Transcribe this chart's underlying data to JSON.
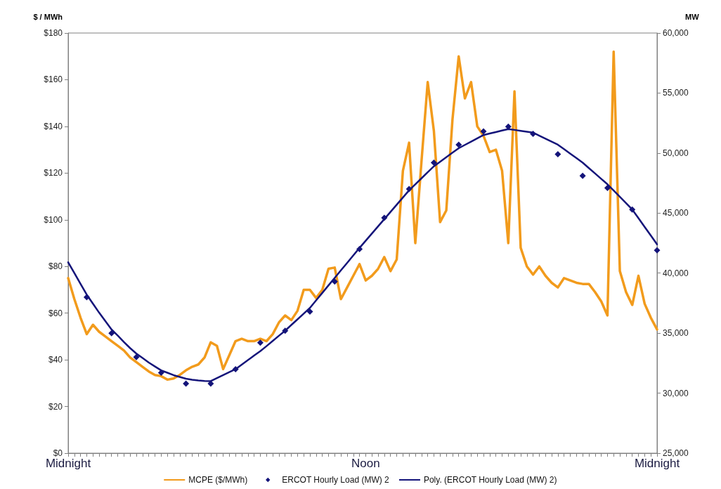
{
  "chart_data": {
    "type": "line",
    "ylabel": "$ / MWh",
    "y2label": "MW",
    "grid": false,
    "legend": "bottom",
    "categories": [
      "Midnight",
      null,
      null,
      null,
      null,
      null,
      null,
      null,
      null,
      null,
      null,
      null,
      null,
      null,
      null,
      null,
      null,
      null,
      null,
      null,
      null,
      null,
      null,
      null,
      null,
      null,
      null,
      null,
      null,
      null,
      null,
      null,
      null,
      null,
      null,
      null,
      null,
      null,
      null,
      null,
      null,
      null,
      null,
      null,
      null,
      null,
      null,
      null,
      "Noon",
      null,
      null,
      null,
      null,
      null,
      null,
      null,
      null,
      null,
      null,
      null,
      null,
      null,
      null,
      null,
      null,
      null,
      null,
      null,
      null,
      null,
      null,
      null,
      null,
      null,
      null,
      null,
      null,
      null,
      null,
      null,
      null,
      null,
      null,
      null,
      null,
      null,
      null,
      null,
      null,
      null,
      null,
      null,
      null,
      null,
      null,
      "Midnight"
    ],
    "ylim": [
      0,
      180
    ],
    "yticks": [
      {
        "value": 0,
        "label": "$0"
      },
      {
        "value": 20,
        "label": "$20"
      },
      {
        "value": 40,
        "label": "$40"
      },
      {
        "value": 60,
        "label": "$60"
      },
      {
        "value": 80,
        "label": "$80"
      },
      {
        "value": 100,
        "label": "$100"
      },
      {
        "value": 120,
        "label": "$120"
      },
      {
        "value": 140,
        "label": "$140"
      },
      {
        "value": 160,
        "label": "$160"
      },
      {
        "value": 180,
        "label": "$180"
      }
    ],
    "y2lim": [
      25000,
      60000
    ],
    "y2ticks": [
      {
        "value": 25000,
        "label": "25,000"
      },
      {
        "value": 30000,
        "label": "30,000"
      },
      {
        "value": 35000,
        "label": "35,000"
      },
      {
        "value": 40000,
        "label": "40,000"
      },
      {
        "value": 45000,
        "label": "45,000"
      },
      {
        "value": 50000,
        "label": "50,000"
      },
      {
        "value": 55000,
        "label": "55,000"
      },
      {
        "value": 60000,
        "label": "60,000"
      }
    ],
    "series": [
      {
        "name": "MCPE ($/MWh)",
        "color": "#f29b1c",
        "marker": "none",
        "line_style": "solid",
        "values": [
          75,
          66,
          58,
          51,
          55,
          52,
          50,
          48,
          46,
          44,
          41,
          39,
          37,
          35,
          33.5,
          33,
          31.5,
          32,
          33.5,
          35.5,
          37,
          38,
          41,
          47.5,
          46,
          36,
          42,
          48,
          49,
          48,
          48,
          49,
          48,
          51,
          56,
          59,
          57,
          61,
          70,
          70,
          66.5,
          70,
          79,
          79.5,
          66,
          71,
          76,
          81,
          74,
          76,
          79,
          84,
          78,
          83,
          121,
          133,
          90,
          125,
          159,
          138,
          99,
          104,
          143,
          170,
          152,
          159,
          140,
          136,
          129,
          130,
          121,
          90,
          155,
          88,
          80,
          76.5,
          80,
          76,
          73,
          71,
          75,
          74,
          73,
          72.5,
          72.5,
          69,
          65,
          59,
          172,
          78,
          69,
          63.5,
          76,
          64,
          58,
          53
        ]
      },
      {
        "name": "ERCOT Hourly Load (MW) 2",
        "type": "scatter",
        "axis": "y2",
        "color": "#14147a",
        "marker": "diamond",
        "values": [
          null,
          null,
          null,
          38000,
          null,
          null,
          null,
          35000,
          null,
          null,
          null,
          33000,
          null,
          null,
          null,
          31700,
          null,
          null,
          null,
          30800,
          null,
          null,
          null,
          30800,
          null,
          null,
          null,
          32000,
          null,
          null,
          null,
          34200,
          null,
          null,
          null,
          35200,
          null,
          null,
          null,
          36800,
          null,
          null,
          null,
          39300,
          null,
          null,
          null,
          42000,
          null,
          null,
          null,
          44600,
          null,
          null,
          null,
          47000,
          null,
          null,
          null,
          49200,
          null,
          null,
          null,
          50700,
          null,
          null,
          null,
          51800,
          null,
          null,
          null,
          52200,
          null,
          null,
          null,
          51600,
          null,
          null,
          null,
          49900,
          null,
          null,
          null,
          48100,
          null,
          null,
          null,
          47100,
          null,
          null,
          null,
          45300,
          null,
          null,
          null,
          41900
        ]
      },
      {
        "name": "Poly. (ERCOT Hourly Load (MW) 2)",
        "type": "line",
        "axis": "y2",
        "color": "#14147a",
        "marker": "none",
        "line_style": "solid",
        "values": [
          40900,
          40000,
          39100,
          38200,
          37450,
          36700,
          36000,
          35300,
          34800,
          34250,
          33750,
          33300,
          32930,
          32550,
          32220,
          31900,
          31700,
          31500,
          31350,
          31200,
          31120,
          31060,
          31020,
          31000,
          31250,
          31500,
          31750,
          32000,
          32380,
          32750,
          33130,
          33500,
          33920,
          34350,
          34780,
          35200,
          35680,
          36150,
          36630,
          37100,
          37730,
          38350,
          38980,
          39600,
          40230,
          40850,
          41480,
          42100,
          42700,
          43300,
          43900,
          44500,
          45100,
          45700,
          46300,
          46900,
          47400,
          47900,
          48400,
          48900,
          49280,
          49650,
          50030,
          50400,
          50680,
          50950,
          51230,
          51500,
          51630,
          51750,
          51880,
          52000,
          51930,
          51850,
          51780,
          51700,
          51450,
          51200,
          50950,
          50700,
          50330,
          49950,
          49580,
          49200,
          48750,
          48300,
          47850,
          47400,
          46880,
          46350,
          45830,
          45300,
          44580,
          43850,
          43130,
          42400
        ]
      }
    ]
  }
}
